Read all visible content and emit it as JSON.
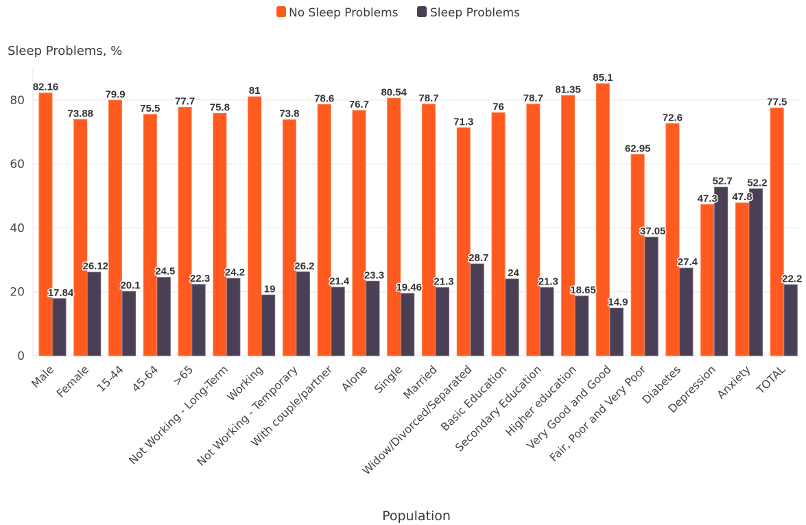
{
  "chart_data": {
    "type": "bar",
    "ylabel": "Sleep Problems, %",
    "xlabel": "Population",
    "ylim": [
      0,
      90
    ],
    "yticks": [
      0,
      20,
      40,
      60,
      80
    ],
    "grid": true,
    "legend_position": "top-center",
    "categories": [
      "Male",
      "Female",
      "15-44",
      "45-64",
      ">65",
      "Not Working - Long-Term",
      "Working",
      "Not Working - Temporary",
      "With couple/partner",
      "Alone",
      "Single",
      "Married",
      "Widow/Divorced/Separated",
      "Basic Education",
      "Secondary Education",
      "Higher education",
      "Very Good and Good",
      "Fair, Poor and Very Poor",
      "Diabetes",
      "Depression",
      "Anxiety",
      "TOTAL"
    ],
    "series": [
      {
        "name": "No Sleep Problems",
        "color": "#ff5a1f",
        "values": [
          82.16,
          73.88,
          79.9,
          75.5,
          77.7,
          75.8,
          81,
          73.8,
          78.6,
          76.7,
          80.54,
          78.7,
          71.3,
          76,
          78.7,
          81.35,
          85.1,
          62.95,
          72.6,
          47.3,
          47.8,
          77.5
        ]
      },
      {
        "name": "Sleep Problems",
        "color": "#4a3f55",
        "values": [
          17.84,
          26.12,
          20.1,
          24.5,
          22.3,
          24.2,
          19,
          26.2,
          21.4,
          23.3,
          19.46,
          21.3,
          28.7,
          24,
          21.3,
          18.65,
          14.9,
          37.05,
          27.4,
          52.7,
          52.2,
          22.2
        ]
      }
    ]
  }
}
